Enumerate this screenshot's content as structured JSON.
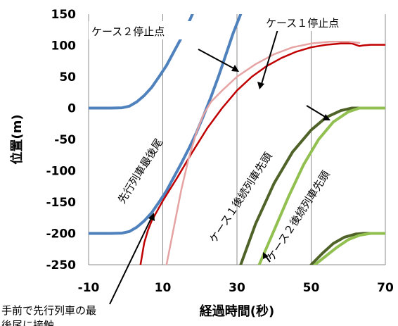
{
  "chart_data": {
    "type": "line",
    "title": "",
    "xlabel": "経過時間(秒)",
    "ylabel": "位置(m)",
    "xlim": [
      -10,
      70
    ],
    "ylim": [
      -250,
      150
    ],
    "xticks": [
      -10,
      10,
      30,
      50,
      70
    ],
    "yticks": [
      150,
      100,
      50,
      0,
      -50,
      -100,
      -150,
      -200,
      -250
    ],
    "x_tick_labels": [
      "-10",
      "10",
      "30",
      "50",
      "70"
    ],
    "y_tick_labels": [
      "150",
      "100",
      "50",
      "0",
      "-50",
      "-100",
      "-150",
      "-200",
      "-250"
    ],
    "grid": {
      "vertical": true,
      "horizontal": false
    },
    "series": [
      {
        "key": "lead_front",
        "color": "#4f81bd",
        "width": 4,
        "points": [
          [
            -10,
            0
          ],
          [
            -4,
            0
          ],
          [
            -1,
            0.5
          ],
          [
            1,
            3
          ],
          [
            3,
            10
          ],
          [
            5,
            20
          ],
          [
            7,
            33
          ],
          [
            9,
            50
          ],
          [
            11,
            68
          ],
          [
            13,
            90
          ],
          [
            15,
            112
          ],
          [
            16.5,
            130
          ],
          [
            18,
            150
          ]
        ]
      },
      {
        "key": "lead_rear",
        "color": "#4f81bd",
        "width": 4,
        "points": [
          [
            -10,
            -200
          ],
          [
            -4,
            -200
          ],
          [
            -1,
            -199.5
          ],
          [
            1,
            -197
          ],
          [
            3,
            -190
          ],
          [
            5,
            -180
          ],
          [
            7,
            -167
          ],
          [
            9,
            -150
          ],
          [
            11,
            -132
          ],
          [
            13,
            -110
          ],
          [
            15,
            -88
          ],
          [
            17,
            -65
          ],
          [
            19,
            -40
          ],
          [
            21,
            -12
          ],
          [
            23,
            18
          ],
          [
            25,
            50
          ],
          [
            27,
            85
          ],
          [
            29,
            120
          ],
          [
            31,
            150
          ]
        ]
      },
      {
        "key": "case1_stop",
        "color": "#c00000",
        "width": 2.5,
        "points": [
          [
            4,
            -250
          ],
          [
            5,
            -215
          ],
          [
            6,
            -195
          ],
          [
            7,
            -180
          ],
          [
            10,
            -148
          ],
          [
            14,
            -110
          ],
          [
            18,
            -70
          ],
          [
            22,
            -32
          ],
          [
            26,
            0
          ],
          [
            30,
            28
          ],
          [
            34,
            50
          ],
          [
            38,
            67
          ],
          [
            42,
            80
          ],
          [
            46,
            90
          ],
          [
            50,
            97
          ],
          [
            54,
            101
          ],
          [
            58,
            103
          ],
          [
            61,
            103
          ],
          [
            62,
            101
          ],
          [
            63,
            99
          ],
          [
            64,
            100
          ],
          [
            66,
            101
          ],
          [
            70,
            101
          ]
        ]
      },
      {
        "key": "case2_stop",
        "color": "#e6a3a3",
        "width": 2.5,
        "points": [
          [
            11,
            -250
          ],
          [
            13,
            -190
          ],
          [
            15,
            -130
          ],
          [
            17,
            -80
          ],
          [
            19,
            -40
          ],
          [
            21,
            -10
          ],
          [
            23,
            10
          ],
          [
            26,
            28
          ],
          [
            30,
            50
          ],
          [
            35,
            70
          ],
          [
            40,
            86
          ],
          [
            45,
            97
          ],
          [
            50,
            103
          ],
          [
            55,
            106
          ],
          [
            60,
            106
          ],
          [
            63,
            104
          ]
        ]
      },
      {
        "key": "case1_follow",
        "color": "#4f6228",
        "width": 4,
        "points": [
          [
            31,
            -250
          ],
          [
            35,
            -185
          ],
          [
            40,
            -120
          ],
          [
            45,
            -70
          ],
          [
            50,
            -35
          ],
          [
            54,
            -15
          ],
          [
            58,
            -4
          ],
          [
            61,
            0
          ],
          [
            63,
            0
          ],
          [
            70,
            0
          ]
        ]
      },
      {
        "key": "case2_follow",
        "color": "#92c050",
        "width": 4,
        "points": [
          [
            36,
            -250
          ],
          [
            40,
            -195
          ],
          [
            44,
            -140
          ],
          [
            48,
            -90
          ],
          [
            52,
            -50
          ],
          [
            56,
            -22
          ],
          [
            60,
            -6
          ],
          [
            63,
            0
          ],
          [
            70,
            0
          ]
        ]
      },
      {
        "key": "case1_follow_b",
        "color": "#4f6228",
        "width": 4,
        "points": [
          [
            50,
            -250
          ],
          [
            53,
            -232
          ],
          [
            56,
            -216
          ],
          [
            59,
            -206
          ],
          [
            62,
            -201
          ],
          [
            64,
            -200
          ],
          [
            70,
            -200
          ]
        ]
      },
      {
        "key": "case2_follow_b",
        "color": "#92c050",
        "width": 4,
        "points": [
          [
            51,
            -250
          ],
          [
            54,
            -236
          ],
          [
            57,
            -222
          ],
          [
            60,
            -210
          ],
          [
            63,
            -203
          ],
          [
            66,
            -200
          ],
          [
            70,
            -200
          ]
        ]
      }
    ],
    "annotations": [
      {
        "key": "case2_stop_label",
        "text": "ケース２停止点"
      },
      {
        "key": "case1_stop_label",
        "text": "ケース１停止点"
      },
      {
        "key": "lead_rear_label",
        "text": "先行列車最後尾"
      },
      {
        "key": "case1_follow_label",
        "text": "ケース１後続列車先頭"
      },
      {
        "key": "case2_follow_label",
        "text": "ケース２後続列車先頭"
      },
      {
        "key": "bottom_note_1",
        "text": "手前で先行列車の最"
      },
      {
        "key": "bottom_note_2",
        "text": "後尾に接触"
      }
    ]
  }
}
